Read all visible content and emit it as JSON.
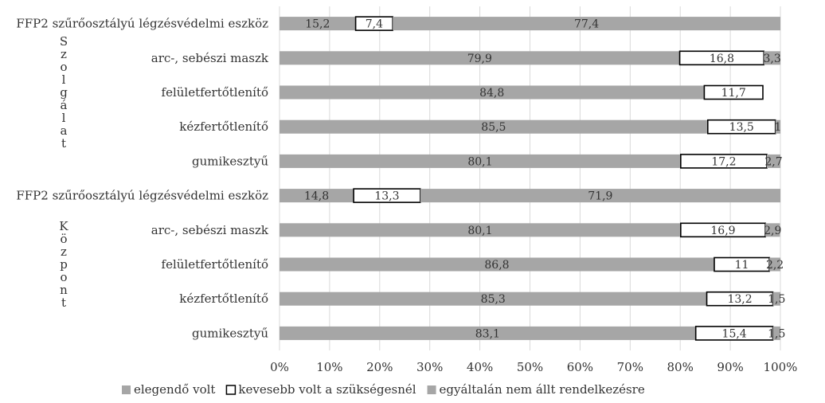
{
  "chart_data": {
    "type": "bar",
    "orientation": "horizontal",
    "stacked": true,
    "groups": [
      {
        "label": "Szolgálat",
        "categories": [
          "FFP2 szűrőosztályú légzésvédelmi eszköz",
          "arc-, sebészi maszk",
          "felületfertőtlenítő",
          "kézfertőtlenítő",
          "gumikesztyű"
        ],
        "series": [
          {
            "name": "elegendő volt",
            "values": [
              15.2,
              79.9,
              84.8,
              85.5,
              80.1
            ],
            "labels": [
              "15,2",
              "79,9",
              "84,8",
              "85,5",
              "80,1"
            ]
          },
          {
            "name": "kevesebb volt a szükségesnél",
            "values": [
              7.4,
              16.8,
              11.7,
              13.5,
              17.2
            ],
            "labels": [
              "7,4",
              "16,8",
              "11,7",
              "13,5",
              "17,2"
            ]
          },
          {
            "name": "egyáltalán nem állt rendelkezésre",
            "values": [
              77.4,
              3.3,
              0,
              1,
              2.7
            ],
            "labels": [
              "77,4",
              "3,3",
              "",
              "1",
              "2,7"
            ]
          }
        ]
      },
      {
        "label": "Központ",
        "categories": [
          "FFP2 szűrőosztályú légzésvédelmi eszköz",
          "arc-, sebészi maszk",
          "felületfertőtlenítő",
          "kézfertőtlenítő",
          "gumikesztyű"
        ],
        "series": [
          {
            "name": "elegendő volt",
            "values": [
              14.8,
              80.1,
              86.8,
              85.3,
              83.1
            ],
            "labels": [
              "14,8",
              "80,1",
              "86,8",
              "85,3",
              "83,1"
            ]
          },
          {
            "name": "kevesebb volt a szükségesnél",
            "values": [
              13.3,
              16.9,
              11,
              13.2,
              15.4
            ],
            "labels": [
              "13,3",
              "16,9",
              "11",
              "13,2",
              "15,4"
            ]
          },
          {
            "name": "egyáltalán nem állt rendelkezésre",
            "values": [
              71.9,
              2.9,
              2.2,
              1.5,
              1.5
            ],
            "labels": [
              "71,9",
              "2,9",
              "2,2",
              "1,5",
              "1,5"
            ]
          }
        ]
      }
    ],
    "xlim": [
      0,
      100
    ],
    "x_ticks": [
      "0%",
      "10%",
      "20%",
      "30%",
      "40%",
      "50%",
      "60%",
      "70%",
      "80%",
      "90%",
      "100%"
    ],
    "grid": true,
    "legend_position": "bottom",
    "colors": {
      "elegendő volt": "#a6a6a6",
      "kevesebb volt a szükségesnél": "#ffffff",
      "egyáltalán nem állt rendelkezésre": "#a6a6a6",
      "outline": "#000000",
      "grid": "#d9d9d9"
    }
  }
}
